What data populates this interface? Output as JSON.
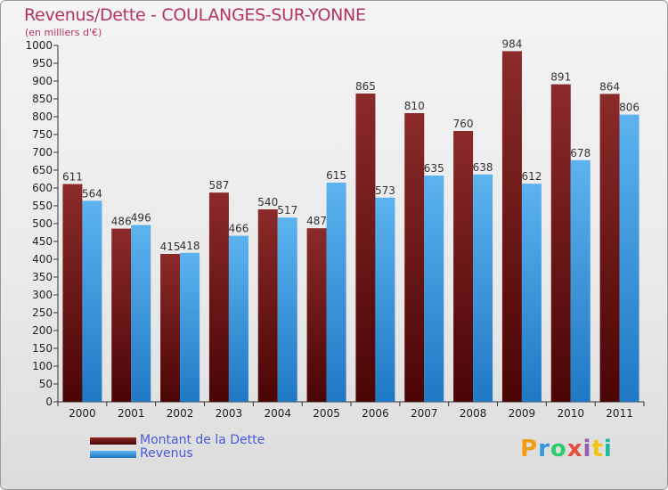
{
  "header": {
    "title": "Revenus/Dette - COULANGES-SUR-YONNE",
    "subtitle": "(en milliers d'€)"
  },
  "colors": {
    "dette": "#7a1a1a",
    "revenus": "#3a9be0",
    "title": "#b5345f",
    "legend_text": "#4a5bd6"
  },
  "legend": {
    "items": [
      {
        "label": "Montant de la Dette",
        "color": "#7a1a1a"
      },
      {
        "label": "Revenus",
        "color": "#3a9be0"
      }
    ]
  },
  "logo": {
    "letters": [
      "P",
      "r",
      "o",
      "x",
      "i",
      "t",
      "i"
    ],
    "colors": [
      "#f39c12",
      "#3498db",
      "#2ecc71",
      "#e74c3c",
      "#9b59b6",
      "#f1c40f",
      "#1abc9c"
    ]
  },
  "chart_data": {
    "type": "bar",
    "categories": [
      "2000",
      "2001",
      "2002",
      "2003",
      "2004",
      "2005",
      "2006",
      "2007",
      "2008",
      "2009",
      "2010",
      "2011"
    ],
    "series": [
      {
        "name": "Montant de la Dette",
        "values": [
          611,
          486,
          415,
          587,
          540,
          487,
          865,
          810,
          760,
          984,
          891,
          864
        ]
      },
      {
        "name": "Revenus",
        "values": [
          564,
          496,
          418,
          466,
          517,
          615,
          573,
          635,
          638,
          612,
          678,
          806
        ]
      }
    ],
    "ylim": [
      0,
      1000
    ],
    "ytick_step": 50,
    "grid": false,
    "legend_position": "bottom-left"
  }
}
